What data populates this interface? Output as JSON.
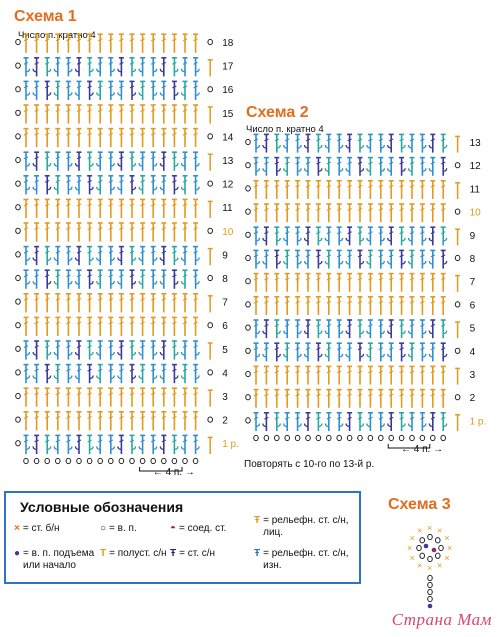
{
  "scheme1": {
    "title": "Схема 1",
    "subtitle": "Число п. кратно 4",
    "row_labels": [
      "1 р.",
      "2",
      "3",
      "4",
      "5",
      "6",
      "7",
      "8",
      "9",
      "10",
      "11",
      "12",
      "13",
      "14",
      "15",
      "16",
      "17",
      "18"
    ],
    "repeat_label": "4 п."
  },
  "scheme2": {
    "title": "Схема 2",
    "subtitle": "Число п. кратно 4",
    "row_labels": [
      "1 р.",
      "2",
      "3",
      "4",
      "5",
      "6",
      "7",
      "8",
      "9",
      "10",
      "11",
      "12",
      "13"
    ],
    "repeat_label": "4 п.",
    "note": "Повторять с 10-го по 13-й р."
  },
  "scheme3": {
    "title": "Схема 3"
  },
  "legend": {
    "title": "Условные обозначения",
    "items": [
      {
        "sym": "×",
        "text": "= ст. б/н",
        "color": "#e36d1e"
      },
      {
        "sym": "○",
        "text": "= в. п.",
        "color": "#111111"
      },
      {
        "sym": "◓",
        "text": "= соед. ст.",
        "color": "#8a2a7a"
      },
      {
        "sym": "Ŧ",
        "text": "= рельефн. ст. с/н, лиц.",
        "color": "#e39a1e"
      },
      {
        "sym": "●",
        "text": "= в. п. подъема или начало",
        "color": "#3a3a9a"
      },
      {
        "sym": "T",
        "text": "= полуст. с/н",
        "color": "#e39a1e"
      },
      {
        "sym": "Ŧ",
        "text": "= ст. с/н",
        "color": "#2a2a6a"
      },
      {
        "sym": "Ŧ",
        "text": "= рельефн. ст. с/н, изн.",
        "color": "#2f74c1"
      }
    ]
  },
  "colors": {
    "title": "#e36d1e",
    "blue": "#2f8fd0",
    "orange": "#e39a1e",
    "navy": "#3a3a9a",
    "teal": "#2aa7a0",
    "border": "#2f74c1"
  },
  "watermark": "Страна Мам"
}
